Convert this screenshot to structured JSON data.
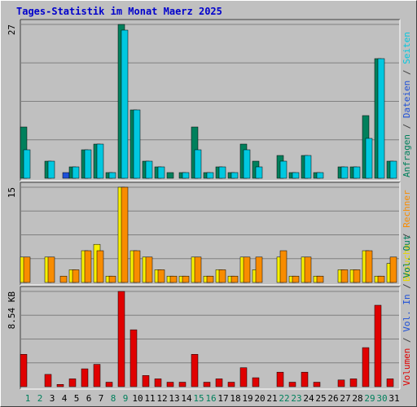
{
  "title": "Tages-Statistik im Monat Maerz 2025",
  "colors": {
    "background": "#c0c0c0",
    "title": "#0000cc",
    "anfragen": "#00805c",
    "dateien": "#00c8e0",
    "seiten": "#00c8e0",
    "seiten_small": "#1e50d8",
    "besuche": "#f8f000",
    "rechner": "#f88c00",
    "volumen": "#e00000",
    "weekend": "#00805c",
    "weekday": "#000000",
    "grid": "#808080"
  },
  "chart_data": [
    {
      "type": "bar",
      "panel": "hits",
      "ymax_label": "27",
      "ylim": [
        0,
        27
      ],
      "legend": [
        "Anfragen",
        "Dateien",
        "Seiten"
      ],
      "x": [
        1,
        2,
        3,
        4,
        5,
        6,
        7,
        8,
        9,
        10,
        11,
        12,
        13,
        14,
        15,
        16,
        17,
        18,
        19,
        20,
        21,
        22,
        23,
        24,
        25,
        26,
        27,
        28,
        29,
        30,
        31
      ],
      "series": [
        {
          "name": "Anfragen",
          "values": [
            9,
            0,
            3,
            0,
            2,
            5,
            6,
            1,
            27,
            12,
            3,
            2,
            1,
            1,
            9,
            1,
            2,
            1,
            6,
            3,
            0,
            4,
            1,
            4,
            1,
            0,
            2,
            2,
            11,
            21,
            3
          ]
        },
        {
          "name": "Dateien",
          "values": [
            5,
            0,
            3,
            0,
            2,
            5,
            6,
            1,
            26,
            12,
            3,
            2,
            0,
            1,
            5,
            1,
            2,
            1,
            5,
            2,
            0,
            3,
            1,
            4,
            1,
            0,
            2,
            2,
            7,
            21,
            3
          ]
        },
        {
          "name": "Seiten",
          "values": [
            0,
            0,
            0,
            1,
            0,
            0,
            0,
            0,
            0,
            0,
            0,
            0,
            0,
            0,
            0,
            0,
            0,
            0,
            0,
            0,
            0,
            0,
            0,
            0,
            0,
            0,
            0,
            0,
            0,
            0,
            0
          ]
        }
      ]
    },
    {
      "type": "bar",
      "panel": "visits",
      "ymax_label": "15",
      "ylim": [
        0,
        15
      ],
      "legend": [
        "Besuche",
        "Rechner"
      ],
      "x": [
        1,
        2,
        3,
        4,
        5,
        6,
        7,
        8,
        9,
        10,
        11,
        12,
        13,
        14,
        15,
        16,
        17,
        18,
        19,
        20,
        21,
        22,
        23,
        24,
        25,
        26,
        27,
        28,
        29,
        30,
        31
      ],
      "series": [
        {
          "name": "Besuche",
          "values": [
            4,
            0,
            4,
            0,
            2,
            5,
            6,
            1,
            15,
            5,
            4,
            2,
            1,
            1,
            4,
            1,
            2,
            1,
            4,
            2,
            0,
            4,
            1,
            4,
            1,
            0,
            2,
            2,
            5,
            1,
            3
          ]
        },
        {
          "name": "Rechner",
          "values": [
            4,
            0,
            4,
            1,
            2,
            5,
            5,
            1,
            15,
            5,
            4,
            2,
            1,
            1,
            4,
            1,
            2,
            1,
            4,
            4,
            0,
            5,
            1,
            4,
            1,
            0,
            2,
            2,
            5,
            1,
            4
          ]
        }
      ]
    },
    {
      "type": "bar",
      "panel": "volume",
      "ymax_label": "8.54 KB",
      "ylim": [
        0,
        8.54
      ],
      "unit": "KB",
      "legend": [
        "Volumen",
        "Vol. In",
        "Vol. Out"
      ],
      "x": [
        1,
        2,
        3,
        4,
        5,
        6,
        7,
        8,
        9,
        10,
        11,
        12,
        13,
        14,
        15,
        16,
        17,
        18,
        19,
        20,
        21,
        22,
        23,
        24,
        25,
        26,
        27,
        28,
        29,
        30,
        31
      ],
      "series": [
        {
          "name": "Volumen",
          "values": [
            2.9,
            0,
            1.1,
            0.2,
            0.7,
            1.6,
            2.0,
            0.4,
            8.54,
            5.1,
            1.0,
            0.7,
            0.4,
            0.4,
            2.9,
            0.4,
            0.7,
            0.4,
            1.7,
            0.8,
            0,
            1.3,
            0.4,
            1.3,
            0.4,
            0,
            0.6,
            0.7,
            3.5,
            7.3,
            0.7
          ]
        }
      ]
    }
  ],
  "x_labels": [
    "1",
    "2",
    "3",
    "4",
    "5",
    "6",
    "7",
    "8",
    "9",
    "10",
    "11",
    "12",
    "13",
    "14",
    "15",
    "16",
    "17",
    "18",
    "19",
    "20",
    "21",
    "22",
    "23",
    "24",
    "25",
    "26",
    "27",
    "28",
    "29",
    "30",
    "31"
  ],
  "weekend_days": [
    1,
    2,
    8,
    9,
    15,
    16,
    22,
    23,
    29,
    30
  ],
  "side_legend_top": {
    "items": [
      "Anfragen",
      "Dateien",
      "Seiten"
    ]
  },
  "side_legend_mid": {
    "items": [
      "Besuche",
      "Rechner"
    ]
  },
  "side_legend_bottom": {
    "items": [
      "Volumen",
      "Vol. In",
      "Vol. Out"
    ]
  },
  "separator": " / "
}
